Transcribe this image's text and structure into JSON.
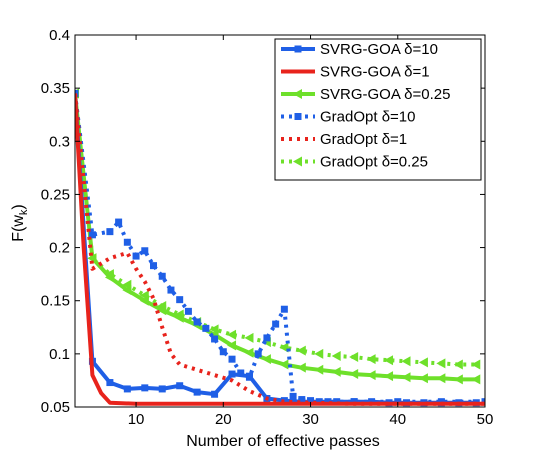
{
  "chart_data": {
    "type": "line",
    "title": "",
    "xlabel": "Number of effective passes",
    "ylabel": "F(w_k)",
    "ylabel_main": "F(w",
    "ylabel_sub": "k",
    "ylabel_close": ")",
    "xlim": [
      3,
      50
    ],
    "ylim": [
      0.05,
      0.4
    ],
    "xticks": [
      10,
      20,
      30,
      40,
      50
    ],
    "yticks": [
      0.05,
      0.1,
      0.15,
      0.2,
      0.25,
      0.3,
      0.35,
      0.4
    ],
    "xtick_labels": [
      "10",
      "20",
      "30",
      "40",
      "50"
    ],
    "ytick_labels": [
      "0.05",
      "0.1",
      "0.15",
      "0.2",
      "0.25",
      "0.3",
      "0.35",
      "0.4"
    ],
    "grid": false,
    "legend_position": "top-right",
    "series": [
      {
        "name": "SVRG-GOA δ=10",
        "color": "#1f5fe6",
        "line_style": "solid",
        "marker": "square",
        "x": [
          3,
          5,
          7,
          9,
          11,
          13,
          15,
          17,
          19,
          21,
          23,
          25,
          27,
          29,
          31,
          33,
          35,
          37,
          39,
          41,
          43,
          45,
          47,
          49
        ],
        "y": [
          0.345,
          0.093,
          0.073,
          0.067,
          0.068,
          0.067,
          0.07,
          0.064,
          0.062,
          0.081,
          0.079,
          0.058,
          0.056,
          0.055,
          0.055,
          0.055,
          0.055,
          0.055,
          0.054,
          0.054,
          0.054,
          0.054,
          0.054,
          0.054
        ]
      },
      {
        "name": "SVRG-GOA δ=1",
        "color": "#e8231c",
        "line_style": "solid",
        "marker": "none",
        "x": [
          3,
          4,
          5,
          6,
          7,
          10,
          15,
          20,
          30,
          40,
          50
        ],
        "y": [
          0.345,
          0.2,
          0.08,
          0.063,
          0.054,
          0.053,
          0.053,
          0.053,
          0.053,
          0.053,
          0.053
        ]
      },
      {
        "name": "SVRG-GOA δ=0.25",
        "color": "#6ee02a",
        "line_style": "solid",
        "marker": "triangle-left",
        "x": [
          3,
          5,
          7,
          9,
          11,
          13,
          15,
          17,
          19,
          21,
          23,
          25,
          27,
          29,
          31,
          33,
          35,
          37,
          39,
          41,
          43,
          45,
          47,
          49
        ],
        "y": [
          0.345,
          0.19,
          0.172,
          0.16,
          0.15,
          0.141,
          0.134,
          0.127,
          0.118,
          0.108,
          0.101,
          0.095,
          0.09,
          0.087,
          0.085,
          0.083,
          0.081,
          0.08,
          0.079,
          0.078,
          0.077,
          0.077,
          0.076,
          0.076
        ]
      },
      {
        "name": "GradOpt δ=10",
        "color": "#1f5fe6",
        "line_style": "dotted",
        "marker": "square",
        "x": [
          3,
          5,
          7,
          8,
          9,
          10,
          11,
          12,
          13,
          14,
          15,
          16,
          17,
          18,
          19,
          20,
          21,
          22,
          23,
          24,
          25,
          26,
          27,
          28,
          29,
          30,
          32,
          35,
          40,
          45,
          50
        ],
        "y": [
          0.345,
          0.212,
          0.215,
          0.224,
          0.205,
          0.192,
          0.197,
          0.183,
          0.173,
          0.16,
          0.151,
          0.14,
          0.13,
          0.124,
          0.114,
          0.102,
          0.095,
          0.082,
          0.078,
          0.1,
          0.115,
          0.128,
          0.142,
          0.06,
          0.057,
          0.056,
          0.055,
          0.055,
          0.055,
          0.055,
          0.055
        ]
      },
      {
        "name": "GradOpt δ=1",
        "color": "#e8231c",
        "line_style": "dotted",
        "marker": "none",
        "x": [
          3,
          5,
          7,
          9,
          10,
          11,
          12,
          13,
          14,
          15,
          17,
          19,
          21,
          23,
          25,
          27,
          30,
          35,
          40,
          50
        ],
        "y": [
          0.345,
          0.18,
          0.19,
          0.195,
          0.18,
          0.168,
          0.152,
          0.125,
          0.1,
          0.09,
          0.085,
          0.08,
          0.075,
          0.065,
          0.058,
          0.055,
          0.054,
          0.053,
          0.053,
          0.053
        ]
      },
      {
        "name": "GradOpt δ=0.25",
        "color": "#6ee02a",
        "line_style": "dotted",
        "marker": "triangle-left",
        "x": [
          3,
          5,
          7,
          9,
          11,
          13,
          15,
          17,
          19,
          21,
          23,
          25,
          27,
          29,
          31,
          33,
          35,
          37,
          39,
          41,
          43,
          45,
          47,
          49
        ],
        "y": [
          0.345,
          0.19,
          0.175,
          0.165,
          0.155,
          0.145,
          0.137,
          0.13,
          0.123,
          0.118,
          0.115,
          0.111,
          0.106,
          0.103,
          0.1,
          0.098,
          0.097,
          0.095,
          0.094,
          0.093,
          0.092,
          0.091,
          0.09,
          0.09
        ]
      }
    ]
  }
}
